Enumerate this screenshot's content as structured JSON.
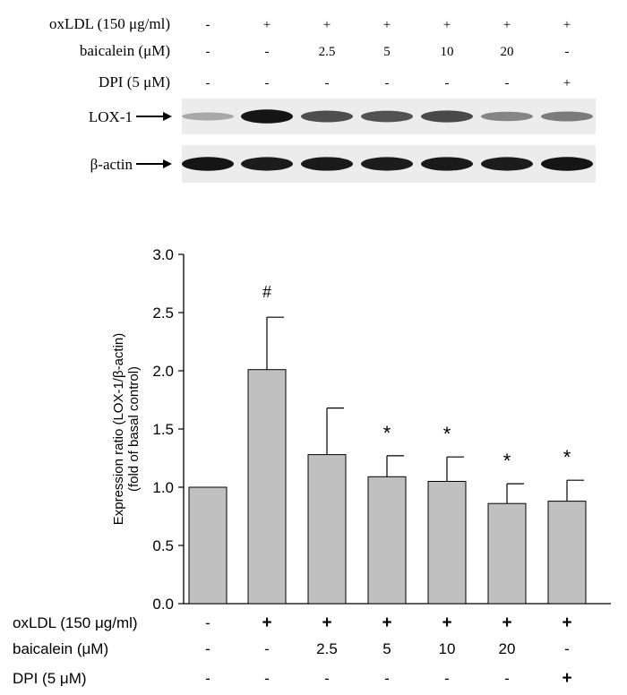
{
  "blot": {
    "treatment_rows": [
      {
        "label": "oxLDL (150 μg/ml)",
        "values": [
          "-",
          "+",
          "+",
          "+",
          "+",
          "+",
          "+"
        ]
      },
      {
        "label": "baicalein (μM)",
        "values": [
          "-",
          "-",
          "2.5",
          "5",
          "10",
          "20",
          "-"
        ]
      },
      {
        "label": "DPI (5 μM)",
        "values": [
          "-",
          "-",
          "-",
          "-",
          "-",
          "-",
          "+"
        ]
      }
    ],
    "bands": [
      {
        "label": "LOX-1",
        "intensity": [
          0.3,
          0.95,
          0.7,
          0.68,
          0.72,
          0.45,
          0.5
        ]
      },
      {
        "label": "β-actin",
        "intensity": [
          0.95,
          0.92,
          0.93,
          0.92,
          0.93,
          0.92,
          0.95
        ]
      }
    ]
  },
  "chart_data": {
    "type": "bar",
    "ylabel_line1": "Expression ratio (LOX-1/β-actin)",
    "ylabel_line2": "(fold of basal control)",
    "ylim": [
      0,
      3.0
    ],
    "yticks": [
      "0.0",
      "0.5",
      "1.0",
      "1.5",
      "2.0",
      "2.5",
      "3.0"
    ],
    "values": [
      1.0,
      2.01,
      1.28,
      1.09,
      1.05,
      0.86,
      0.88
    ],
    "errors": [
      0,
      0.45,
      0.4,
      0.18,
      0.21,
      0.17,
      0.18
    ],
    "annotations": [
      "",
      "#",
      "",
      "*",
      "*",
      "*",
      "*"
    ],
    "bar_color": "#c0c0c0",
    "treatment_rows": [
      {
        "label": "oxLDL (150 μg/ml)",
        "values": [
          "-",
          "+",
          "+",
          "+",
          "+",
          "+",
          "+"
        ]
      },
      {
        "label": "baicalein (μM)",
        "values": [
          "-",
          "-",
          "2.5",
          "5",
          "10",
          "20",
          "-"
        ]
      },
      {
        "label": "DPI (5 μM)",
        "values": [
          "-",
          "-",
          "-",
          "-",
          "-",
          "-",
          "+"
        ]
      }
    ]
  }
}
